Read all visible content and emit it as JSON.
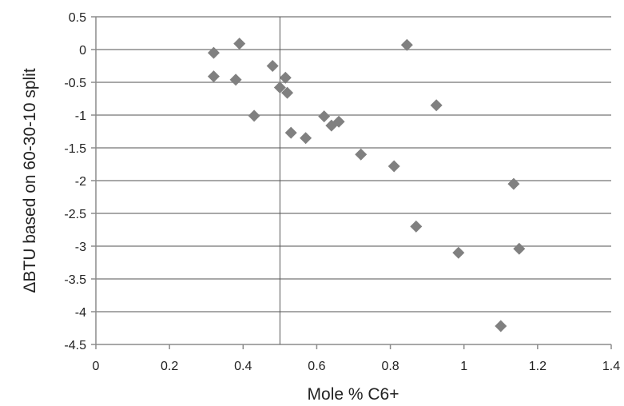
{
  "chart_data": {
    "type": "scatter",
    "xlabel": "Mole % C6+",
    "ylabel": "ΔBTU based on 60-30-10 split",
    "xlim": [
      0,
      1.4
    ],
    "ylim": [
      -4.5,
      0.5
    ],
    "x_ticks": [
      0,
      0.2,
      0.4,
      0.6,
      0.8,
      1,
      1.2,
      1.4
    ],
    "x_tick_labels": [
      "0",
      "0.2",
      "0.4",
      "0.6",
      "0.8",
      "1",
      "1.2",
      "1.4"
    ],
    "y_ticks": [
      0.5,
      0,
      -0.5,
      -1,
      -1.5,
      -2,
      -2.5,
      -3,
      -3.5,
      -4,
      -4.5
    ],
    "y_tick_labels": [
      "0.5",
      "0",
      "-0.5",
      "-1",
      "-1.5",
      "-2",
      "-2.5",
      "-3",
      "-3.5",
      "-4",
      "-4.5"
    ],
    "grid": "horizontal",
    "vertical_reference_line_x": 0.5,
    "marker": "diamond",
    "marker_color": "#808080",
    "grid_color": "#8c8c8c",
    "points": [
      {
        "x": 0.32,
        "y": -0.05
      },
      {
        "x": 0.32,
        "y": -0.41
      },
      {
        "x": 0.38,
        "y": -0.46
      },
      {
        "x": 0.39,
        "y": 0.09
      },
      {
        "x": 0.43,
        "y": -1.01
      },
      {
        "x": 0.48,
        "y": -0.25
      },
      {
        "x": 0.5,
        "y": -0.58
      },
      {
        "x": 0.515,
        "y": -0.43
      },
      {
        "x": 0.52,
        "y": -0.66
      },
      {
        "x": 0.53,
        "y": -1.27
      },
      {
        "x": 0.57,
        "y": -1.35
      },
      {
        "x": 0.62,
        "y": -1.02
      },
      {
        "x": 0.64,
        "y": -1.16
      },
      {
        "x": 0.66,
        "y": -1.1
      },
      {
        "x": 0.72,
        "y": -1.6
      },
      {
        "x": 0.81,
        "y": -1.78
      },
      {
        "x": 0.845,
        "y": 0.07
      },
      {
        "x": 0.87,
        "y": -2.7
      },
      {
        "x": 0.925,
        "y": -0.85
      },
      {
        "x": 0.985,
        "y": -3.1
      },
      {
        "x": 1.1,
        "y": -4.22
      },
      {
        "x": 1.135,
        "y": -2.05
      },
      {
        "x": 1.15,
        "y": -3.04
      }
    ]
  }
}
